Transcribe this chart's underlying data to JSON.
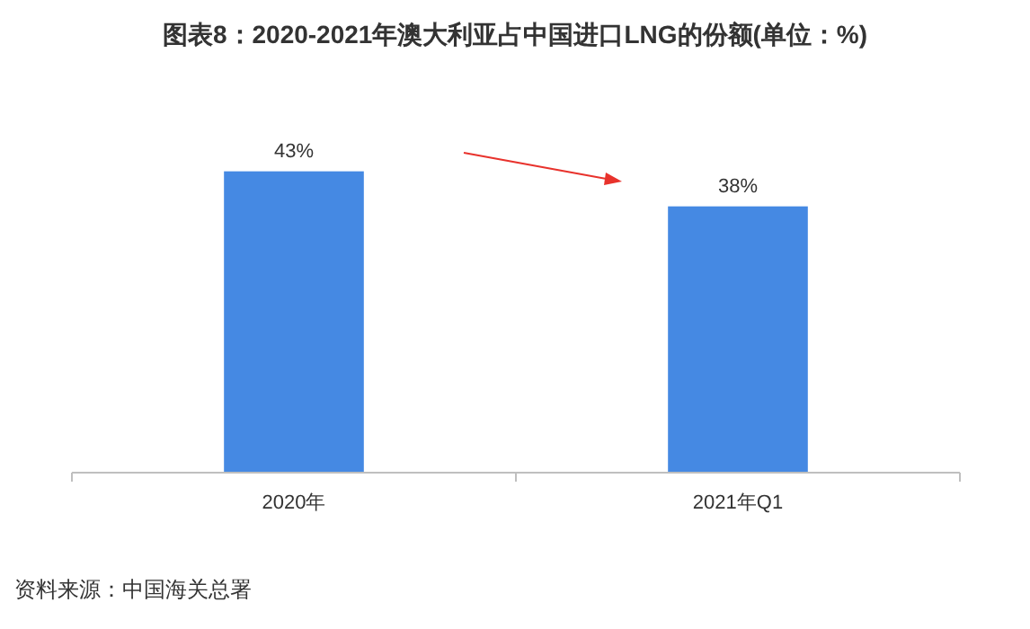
{
  "chart_data": {
    "type": "bar",
    "title": "图表8：2020-2021年澳大利亚占中国进口LNG的份额(单位：%)",
    "categories": [
      "2020年",
      "2021年Q1"
    ],
    "values": [
      43,
      38
    ],
    "value_labels": [
      "43%",
      "38%"
    ],
    "color": "#4589e3",
    "annotations": [
      "资料来源：中国海关总署"
    ]
  }
}
